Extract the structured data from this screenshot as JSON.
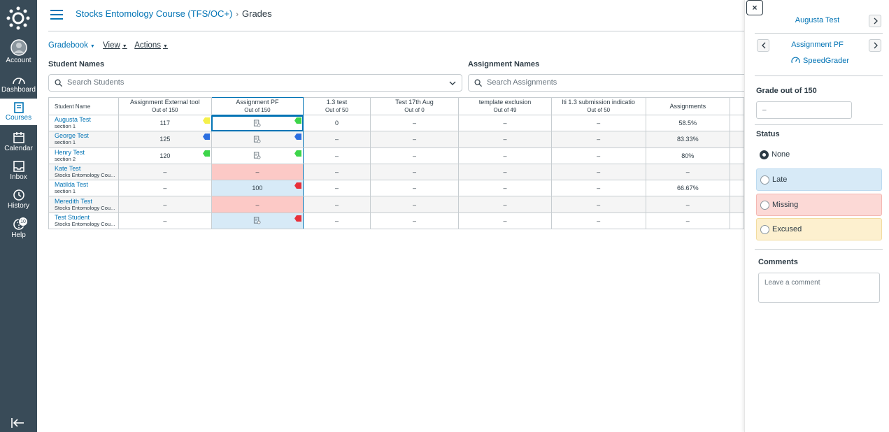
{
  "global_nav": {
    "items": [
      {
        "label": "Account",
        "icon": "account-icon"
      },
      {
        "label": "Dashboard",
        "icon": "dashboard-icon"
      },
      {
        "label": "Courses",
        "icon": "courses-icon"
      },
      {
        "label": "Calendar",
        "icon": "calendar-icon"
      },
      {
        "label": "Inbox",
        "icon": "inbox-icon"
      },
      {
        "label": "History",
        "icon": "history-icon"
      },
      {
        "label": "Help",
        "icon": "help-icon"
      }
    ],
    "help_badge": "10",
    "active": "Courses",
    "bg_color": "#394b58"
  },
  "breadcrumb": {
    "course": "Stocks Entomology Course (TFS/OC+)",
    "separator": "›",
    "current": "Grades"
  },
  "menus": {
    "gradebook": "Gradebook",
    "view": "View",
    "actions": "Actions"
  },
  "filters": {
    "students_label": "Student Names",
    "students_placeholder": "Search Students",
    "assignments_label": "Assignment Names",
    "assignments_placeholder": "Search Assignments"
  },
  "grid": {
    "columns": [
      {
        "title": "Student Name",
        "sub": ""
      },
      {
        "title": "Assignment External tool",
        "sub": "Out of 150"
      },
      {
        "title": "Assignment PF",
        "sub": "Out of 150"
      },
      {
        "title": "1.3 test",
        "sub": "Out of 50"
      },
      {
        "title": "Test 17th Aug",
        "sub": "Out of 0"
      },
      {
        "title": "template exclusion",
        "sub": "Out of 49"
      },
      {
        "title": "lti 1.3 submission indicatio",
        "sub": "Out of 50"
      },
      {
        "title": "Assignments",
        "sub": ""
      }
    ],
    "rows": [
      {
        "name": "Augusta Test",
        "section": "section 1",
        "ext": "117",
        "ext_flag": "#f5f04a",
        "pf": "doc",
        "pf_flag": "#3dd54a",
        "pf_state": "selected",
        "t13": "0",
        "aug": "–",
        "tmpl": "–",
        "lti": "–",
        "assign": "58.5%"
      },
      {
        "name": "George Test",
        "section": "section 1",
        "ext": "125",
        "ext_flag": "#2c6fe0",
        "pf": "doc",
        "pf_flag": "#2c6fe0",
        "pf_state": "",
        "t13": "–",
        "aug": "–",
        "tmpl": "–",
        "lti": "–",
        "assign": "83.33%"
      },
      {
        "name": "Henry Test",
        "section": "section 2",
        "ext": "120",
        "ext_flag": "#3dd54a",
        "pf": "doc",
        "pf_flag": "#3dd54a",
        "pf_state": "",
        "t13": "–",
        "aug": "–",
        "tmpl": "–",
        "lti": "–",
        "assign": "80%"
      },
      {
        "name": "Kate Test",
        "section": "Stocks Entomology Cou...",
        "ext": "–",
        "ext_flag": "",
        "pf": "–",
        "pf_flag": "",
        "pf_state": "missing",
        "t13": "–",
        "aug": "–",
        "tmpl": "–",
        "lti": "–",
        "assign": "–"
      },
      {
        "name": "Matilda Test",
        "section": "section 1",
        "ext": "–",
        "ext_flag": "",
        "pf": "100",
        "pf_flag": "#e8303a",
        "pf_state": "late",
        "t13": "–",
        "aug": "–",
        "tmpl": "–",
        "lti": "–",
        "assign": "66.67%"
      },
      {
        "name": "Meredith Test",
        "section": "Stocks Entomology Cou...",
        "ext": "–",
        "ext_flag": "",
        "pf": "–",
        "pf_flag": "",
        "pf_state": "missing",
        "t13": "–",
        "aug": "–",
        "tmpl": "–",
        "lti": "–",
        "assign": "–"
      },
      {
        "name": "Test Student",
        "section": "Stocks Entomology Cou...",
        "ext": "–",
        "ext_flag": "",
        "pf": "doc",
        "pf_flag": "#e8303a",
        "pf_state": "late",
        "t13": "–",
        "aug": "–",
        "tmpl": "–",
        "lti": "–",
        "assign": "–"
      }
    ]
  },
  "tray": {
    "close": "×",
    "student": "Augusta Test",
    "assignment": "Assignment PF",
    "speedgrader": "SpeedGrader",
    "grade_label": "Grade out of 150",
    "grade_value": "–",
    "status_label": "Status",
    "statuses": [
      {
        "label": "None",
        "selected": true
      },
      {
        "label": "Late",
        "color": "#d7eaf7"
      },
      {
        "label": "Missing",
        "color": "#fcd9d6"
      },
      {
        "label": "Excused",
        "color": "#fdf0cf"
      }
    ],
    "comments_label": "Comments",
    "comment_placeholder": "Leave a comment"
  }
}
